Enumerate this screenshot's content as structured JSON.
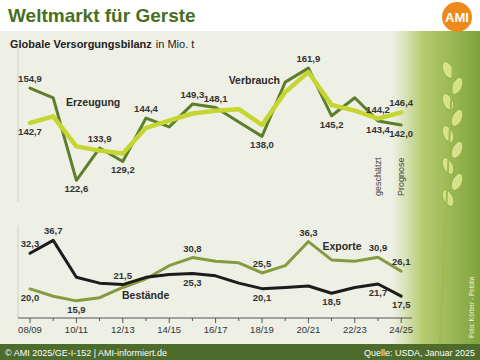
{
  "header": {
    "title": "Weltmarkt für Gerste",
    "logo": "AMI",
    "subtitle": "Globale Versorgungsbilanz",
    "unit": "in Mio. t"
  },
  "chart_data": [
    {
      "type": "line",
      "categories": [
        "08/09",
        null,
        "10/11",
        null,
        "12/13",
        null,
        "14/15",
        null,
        "16/17",
        null,
        "18/19",
        null,
        "20/21",
        null,
        "22/23",
        null,
        "24/25"
      ],
      "series": [
        {
          "name": "Erzeugung",
          "color": "#5d7f2a",
          "values": [
            154.9,
            151.5,
            122.6,
            133.9,
            129.2,
            144.4,
            141.3,
            149.3,
            148.1,
            143.0,
            138.0,
            157.0,
            161.9,
            145.2,
            151.5,
            143.4,
            142.0
          ],
          "value_labels": [
            "154,9",
            null,
            "122,6",
            "133,9",
            "129,2",
            "144,4",
            null,
            "149,3",
            "148,1",
            null,
            "138,0",
            null,
            "161,9",
            "145,2",
            null,
            "143,4",
            "142,0"
          ]
        },
        {
          "name": "Verbrauch",
          "color": "#c5d630",
          "values": [
            142.7,
            145.0,
            134.5,
            133.0,
            132.0,
            141.0,
            143.5,
            146.0,
            147.0,
            147.5,
            142.0,
            153.5,
            160.5,
            149.0,
            147.0,
            144.2,
            146.4
          ],
          "value_labels": [
            "142,7",
            null,
            null,
            null,
            null,
            null,
            null,
            null,
            null,
            null,
            null,
            null,
            null,
            null,
            null,
            "144,2",
            "146,4"
          ]
        }
      ],
      "ylim": [
        115,
        170
      ],
      "tick_labels": false,
      "data_labels": true,
      "annotations": [
        {
          "text": "geschätzt",
          "x": 15
        },
        {
          "text": "Prognose",
          "x": 16
        }
      ]
    },
    {
      "type": "line",
      "categories": [
        "08/09",
        null,
        "10/11",
        null,
        "12/13",
        null,
        "14/15",
        null,
        "16/17",
        null,
        "18/19",
        null,
        "20/21",
        null,
        "22/23",
        null,
        "24/25"
      ],
      "series": [
        {
          "name": "Exporte",
          "color": "#869a3f",
          "values": [
            20.0,
            17.5,
            15.9,
            17.0,
            20.5,
            23.5,
            28.0,
            30.8,
            29.5,
            29.0,
            25.5,
            28.0,
            36.3,
            30.0,
            29.5,
            30.9,
            26.1
          ],
          "value_labels": [
            "20,0",
            null,
            "15,9",
            null,
            null,
            null,
            null,
            "30,8",
            null,
            null,
            "25,5",
            null,
            "36,3",
            null,
            null,
            "30,9",
            "26,1"
          ]
        },
        {
          "name": "Bestände",
          "color": "#1c1c1c",
          "values": [
            32.3,
            36.7,
            24.0,
            22.0,
            21.5,
            24.0,
            25.0,
            25.3,
            24.5,
            22.0,
            20.1,
            20.5,
            21.0,
            18.5,
            20.5,
            21.7,
            17.5
          ],
          "value_labels": [
            "32,3",
            "36,7",
            null,
            null,
            "21,5",
            null,
            null,
            "25,3",
            null,
            null,
            "20,1",
            null,
            null,
            "18,5",
            null,
            "21,7",
            "17,5"
          ]
        }
      ],
      "ylim": [
        10,
        42
      ],
      "tick_labels": "x",
      "data_labels": true
    }
  ],
  "footer": {
    "copyright": "© AMI 2025/GE-I-152 | AMI-informiert.de",
    "source": "Quelle: USDA, Januar 2025",
    "photo_credit": "Foto: Körber - Fotolia"
  }
}
